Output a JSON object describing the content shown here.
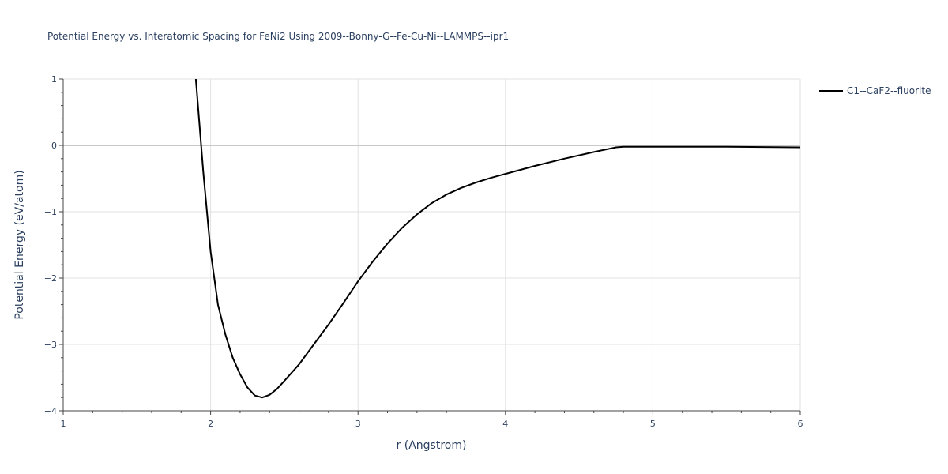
{
  "chart_data": {
    "type": "line",
    "title": "Potential Energy vs. Interatomic Spacing for FeNi2 Using 2009--Bonny-G--Fe-Cu-Ni--LAMMPS--ipr1",
    "xlabel": "r (Angstrom)",
    "ylabel": "Potential Energy (eV/atom)",
    "xlim": [
      1,
      6
    ],
    "ylim": [
      -4,
      1
    ],
    "xticks": [
      1,
      2,
      3,
      4,
      5,
      6
    ],
    "xtick_labels": [
      "1",
      "2",
      "3",
      "4",
      "5",
      "6"
    ],
    "yticks": [
      -4,
      -3,
      -2,
      -1,
      0,
      1
    ],
    "ytick_labels": [
      "−4",
      "−3",
      "−2",
      "−1",
      "0",
      "1"
    ],
    "grid": true,
    "legend_position": "top-right",
    "series": [
      {
        "name": "C1--CaF2--fluorite",
        "color": "#000000",
        "x": [
          1.9,
          1.95,
          2.0,
          2.05,
          2.1,
          2.15,
          2.2,
          2.25,
          2.3,
          2.35,
          2.4,
          2.45,
          2.5,
          2.6,
          2.7,
          2.8,
          2.9,
          3.0,
          3.1,
          3.2,
          3.3,
          3.4,
          3.5,
          3.6,
          3.7,
          3.8,
          3.9,
          4.0,
          4.2,
          4.4,
          4.6,
          4.75,
          4.8,
          5.0,
          5.5,
          6.0
        ],
        "y": [
          1.0,
          -0.4,
          -1.6,
          -2.4,
          -2.85,
          -3.2,
          -3.45,
          -3.65,
          -3.77,
          -3.8,
          -3.76,
          -3.67,
          -3.55,
          -3.3,
          -3.0,
          -2.7,
          -2.38,
          -2.05,
          -1.75,
          -1.48,
          -1.24,
          -1.04,
          -0.87,
          -0.74,
          -0.64,
          -0.56,
          -0.49,
          -0.43,
          -0.31,
          -0.2,
          -0.1,
          -0.03,
          -0.02,
          -0.02,
          -0.02,
          -0.03
        ]
      }
    ]
  }
}
